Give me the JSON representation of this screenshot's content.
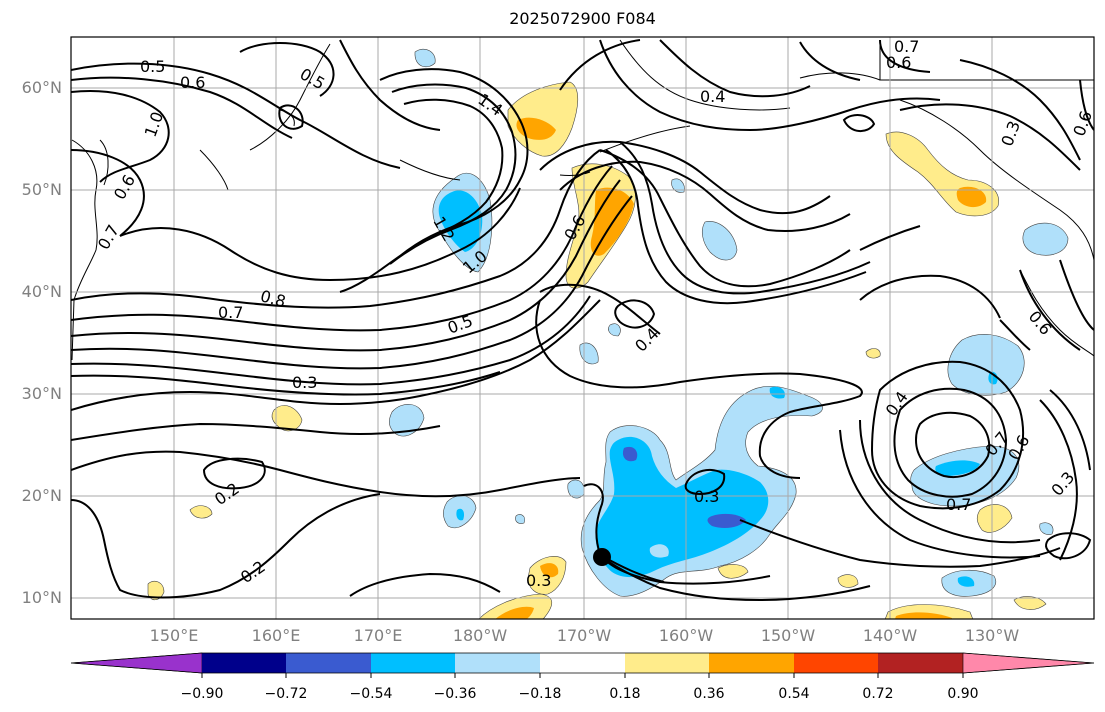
{
  "title": "2025072900 F084",
  "lat_labels": [
    "60°N",
    "50°N",
    "40°N",
    "30°N",
    "20°N",
    "10°N"
  ],
  "lon_labels": [
    "150°E",
    "160°E",
    "170°E",
    "180°W",
    "170°W",
    "160°W",
    "150°W",
    "140°W",
    "130°W"
  ],
  "contour_labels": [
    "0.5",
    "0.6",
    "1.0",
    "0.6",
    "0.7",
    "0.5",
    "1.4",
    "1.0",
    "1.2",
    "0.6",
    "0.7",
    "0.8",
    "0.5",
    "0.3",
    "0.4",
    "0.2",
    "0.2",
    "0.3",
    "0.3",
    "0.4",
    "0.7",
    "0.6",
    "0.7",
    "0.6",
    "0.3",
    "0.4",
    "0.6",
    "0.3",
    "0.7",
    "0.6"
  ],
  "colorbar": {
    "colors": [
      "#9932cc",
      "#00008b",
      "#3a5bd0",
      "#00bfff",
      "#b0e0fa",
      "#ffffff",
      "#ffec8b",
      "#ffa500",
      "#ff4500",
      "#b22222",
      "#ff88aa"
    ],
    "tick_labels": [
      "−0.90",
      "−0.72",
      "−0.54",
      "−0.36",
      "−0.18",
      "0.18",
      "0.36",
      "0.54",
      "0.72",
      "0.90"
    ]
  },
  "marker": "storm-position-dot"
}
